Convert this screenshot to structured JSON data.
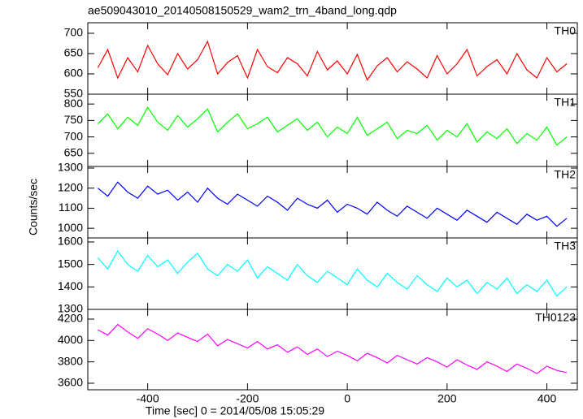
{
  "chart_data": {
    "type": "line",
    "title": "ae509043010_20140508150529_wam2_trn_4band_long.qdp",
    "xlabel": "Time [sec] 0 = 2014/05/08 15:05:29",
    "ylabel": "Counts/sec",
    "xlim": [
      -520,
      461
    ],
    "xticks": [
      -400,
      -200,
      0,
      200,
      400
    ],
    "x": [
      -500,
      -480,
      -460,
      -440,
      -420,
      -400,
      -380,
      -360,
      -340,
      -320,
      -300,
      -280,
      -260,
      -240,
      -220,
      -200,
      -180,
      -160,
      -140,
      -120,
      -100,
      -80,
      -60,
      -40,
      -20,
      0,
      20,
      40,
      60,
      80,
      100,
      120,
      140,
      160,
      180,
      200,
      220,
      240,
      260,
      280,
      300,
      320,
      340,
      360,
      380,
      400,
      420,
      440
    ],
    "series": [
      {
        "name": "TH0",
        "color": "#ff0000",
        "ylim": [
          550,
          726
        ],
        "yticks": [
          550,
          600,
          650,
          700
        ],
        "values": [
          615,
          660,
          590,
          640,
          605,
          670,
          625,
          598,
          650,
          612,
          635,
          680,
          600,
          628,
          645,
          590,
          660,
          618,
          603,
          640,
          625,
          595,
          655,
          610,
          632,
          600,
          648,
          585,
          620,
          640,
          605,
          630,
          612,
          590,
          645,
          600,
          625,
          660,
          595,
          618,
          635,
          600,
          650,
          610,
          590,
          640,
          605,
          625
        ]
      },
      {
        "name": "TH1",
        "color": "#00ff00",
        "ylim": [
          610,
          830
        ],
        "yticks": [
          650,
          700,
          750,
          800
        ],
        "values": [
          740,
          770,
          725,
          760,
          735,
          790,
          745,
          720,
          765,
          730,
          755,
          785,
          715,
          745,
          770,
          725,
          740,
          760,
          715,
          735,
          755,
          720,
          745,
          700,
          730,
          710,
          760,
          705,
          725,
          745,
          695,
          720,
          710,
          735,
          690,
          720,
          700,
          740,
          685,
          715,
          695,
          725,
          680,
          710,
          690,
          730,
          675,
          700
        ]
      },
      {
        "name": "TH2",
        "color": "#0000ff",
        "ylim": [
          952,
          1308
        ],
        "yticks": [
          1000,
          1100,
          1200,
          1300
        ],
        "values": [
          1200,
          1160,
          1230,
          1180,
          1150,
          1210,
          1170,
          1190,
          1140,
          1180,
          1130,
          1200,
          1150,
          1120,
          1170,
          1140,
          1110,
          1160,
          1130,
          1090,
          1150,
          1120,
          1100,
          1140,
          1080,
          1120,
          1100,
          1070,
          1130,
          1090,
          1060,
          1110,
          1080,
          1050,
          1100,
          1070,
          1040,
          1090,
          1060,
          1030,
          1080,
          1050,
          1020,
          1070,
          1040,
          1060,
          1010,
          1050
        ]
      },
      {
        "name": "TH3",
        "color": "#00ffff",
        "ylim": [
          1300,
          1618
        ],
        "yticks": [
          1300,
          1400,
          1500,
          1600
        ],
        "values": [
          1530,
          1480,
          1560,
          1500,
          1470,
          1540,
          1490,
          1520,
          1460,
          1510,
          1550,
          1480,
          1450,
          1500,
          1470,
          1520,
          1440,
          1490,
          1460,
          1430,
          1500,
          1450,
          1420,
          1470,
          1440,
          1410,
          1480,
          1430,
          1400,
          1460,
          1420,
          1390,
          1450,
          1410,
          1380,
          1440,
          1400,
          1430,
          1370,
          1420,
          1390,
          1440,
          1370,
          1410,
          1380,
          1430,
          1360,
          1400
        ]
      },
      {
        "name": "TH0123",
        "color": "#ff00ff",
        "ylim": [
          3539,
          4291
        ],
        "yticks": [
          3600,
          3800,
          4000,
          4200
        ],
        "values": [
          4100,
          4050,
          4150,
          4080,
          4020,
          4110,
          4060,
          4000,
          4070,
          4030,
          3990,
          4060,
          3950,
          4010,
          3970,
          3930,
          3990,
          3920,
          3960,
          3890,
          3940,
          3870,
          3920,
          3850,
          3900,
          3860,
          3810,
          3880,
          3840,
          3790,
          3860,
          3820,
          3780,
          3840,
          3800,
          3750,
          3820,
          3770,
          3730,
          3800,
          3760,
          3710,
          3780,
          3740,
          3690,
          3760,
          3720,
          3700
        ]
      }
    ]
  }
}
